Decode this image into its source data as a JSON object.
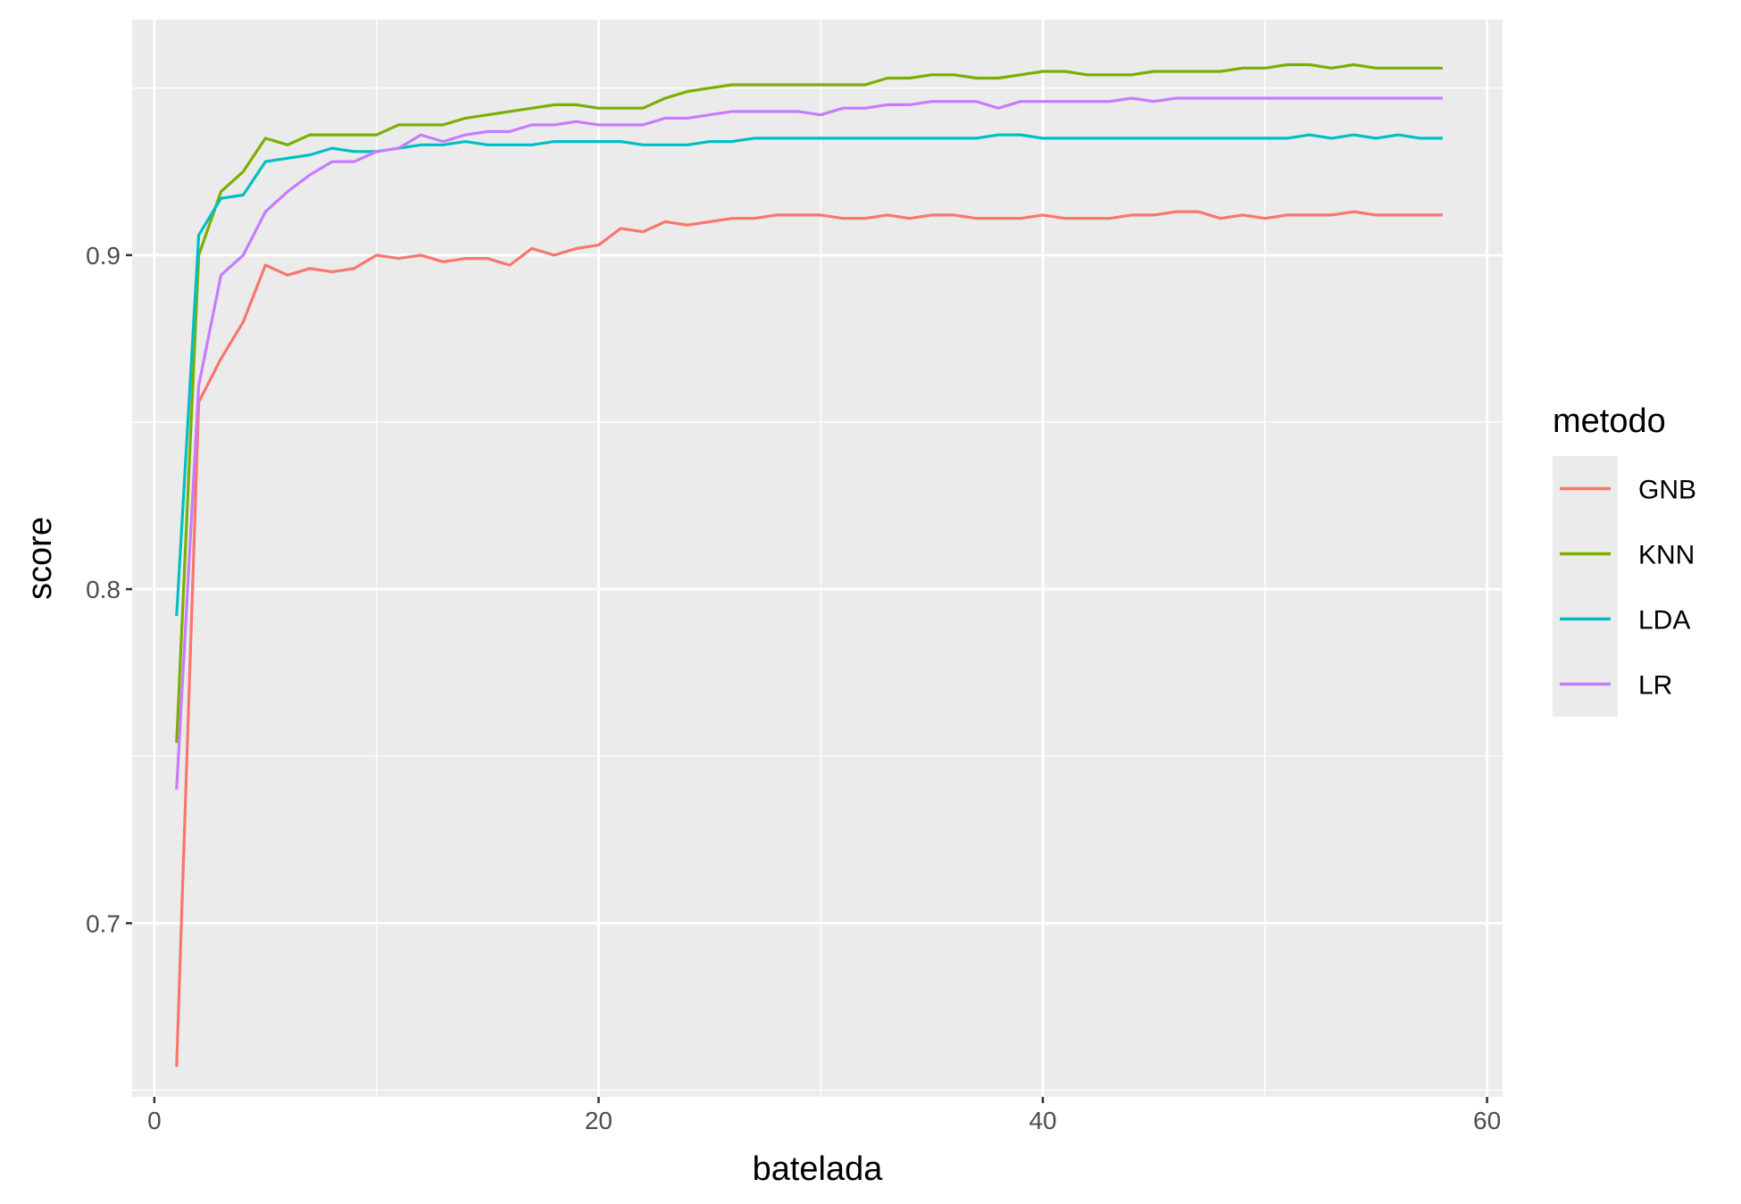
{
  "chart_data": {
    "type": "line",
    "xlabel": "batelada",
    "ylabel": "score",
    "xlim": [
      -1,
      60.7
    ],
    "ylim": [
      0.648,
      0.9705
    ],
    "x_ticks": [
      0,
      20,
      40,
      60
    ],
    "x_tick_labels": [
      "0",
      "20",
      "40",
      "60"
    ],
    "y_ticks": [
      0.7,
      0.8,
      0.9
    ],
    "y_tick_labels": [
      "0.7",
      "0.8",
      "0.9"
    ],
    "grid": true,
    "legend": {
      "title": "metodo",
      "position": "right"
    },
    "x": [
      1,
      2,
      3,
      4,
      5,
      6,
      7,
      8,
      9,
      10,
      11,
      12,
      13,
      14,
      15,
      16,
      17,
      18,
      19,
      20,
      21,
      22,
      23,
      24,
      25,
      26,
      27,
      28,
      29,
      30,
      31,
      32,
      33,
      34,
      35,
      36,
      37,
      38,
      39,
      40,
      41,
      42,
      43,
      44,
      45,
      46,
      47,
      48,
      49,
      50,
      51,
      52,
      53,
      54,
      55,
      56,
      57,
      58
    ],
    "series": [
      {
        "name": "GNB",
        "color": "#F8766D",
        "values": [
          0.657,
          0.856,
          0.869,
          0.88,
          0.897,
          0.894,
          0.896,
          0.895,
          0.896,
          0.9,
          0.899,
          0.9,
          0.898,
          0.899,
          0.899,
          0.897,
          0.902,
          0.9,
          0.902,
          0.903,
          0.908,
          0.907,
          0.91,
          0.909,
          0.91,
          0.911,
          0.911,
          0.912,
          0.912,
          0.912,
          0.911,
          0.911,
          0.912,
          0.911,
          0.912,
          0.912,
          0.911,
          0.911,
          0.911,
          0.912,
          0.911,
          0.911,
          0.911,
          0.912,
          0.912,
          0.913,
          0.913,
          0.911,
          0.912,
          0.911,
          0.912,
          0.912,
          0.912,
          0.913,
          0.912,
          0.912,
          0.912,
          0.912
        ]
      },
      {
        "name": "KNN",
        "color": "#7CAE00",
        "values": [
          0.754,
          0.9,
          0.919,
          0.925,
          0.935,
          0.933,
          0.936,
          0.936,
          0.936,
          0.936,
          0.939,
          0.939,
          0.939,
          0.941,
          0.942,
          0.943,
          0.944,
          0.945,
          0.945,
          0.944,
          0.944,
          0.944,
          0.947,
          0.949,
          0.95,
          0.951,
          0.951,
          0.951,
          0.951,
          0.951,
          0.951,
          0.951,
          0.953,
          0.953,
          0.954,
          0.954,
          0.953,
          0.953,
          0.954,
          0.955,
          0.955,
          0.954,
          0.954,
          0.954,
          0.955,
          0.955,
          0.955,
          0.955,
          0.956,
          0.956,
          0.957,
          0.957,
          0.956,
          0.957,
          0.956,
          0.956,
          0.956,
          0.956
        ]
      },
      {
        "name": "LDA",
        "color": "#00BFC4",
        "values": [
          0.792,
          0.906,
          0.917,
          0.918,
          0.928,
          0.929,
          0.93,
          0.932,
          0.931,
          0.931,
          0.932,
          0.933,
          0.933,
          0.934,
          0.933,
          0.933,
          0.933,
          0.934,
          0.934,
          0.934,
          0.934,
          0.933,
          0.933,
          0.933,
          0.934,
          0.934,
          0.935,
          0.935,
          0.935,
          0.935,
          0.935,
          0.935,
          0.935,
          0.935,
          0.935,
          0.935,
          0.935,
          0.936,
          0.936,
          0.935,
          0.935,
          0.935,
          0.935,
          0.935,
          0.935,
          0.935,
          0.935,
          0.935,
          0.935,
          0.935,
          0.935,
          0.936,
          0.935,
          0.936,
          0.935,
          0.936,
          0.935,
          0.935
        ]
      },
      {
        "name": "LR",
        "color": "#C77CFF",
        "values": [
          0.74,
          0.861,
          0.894,
          0.9,
          0.913,
          0.919,
          0.924,
          0.928,
          0.928,
          0.931,
          0.932,
          0.936,
          0.934,
          0.936,
          0.937,
          0.937,
          0.939,
          0.939,
          0.94,
          0.939,
          0.939,
          0.939,
          0.941,
          0.941,
          0.942,
          0.943,
          0.943,
          0.943,
          0.943,
          0.942,
          0.944,
          0.944,
          0.945,
          0.945,
          0.946,
          0.946,
          0.946,
          0.944,
          0.946,
          0.946,
          0.946,
          0.946,
          0.946,
          0.947,
          0.946,
          0.947,
          0.947,
          0.947,
          0.947,
          0.947,
          0.947,
          0.947,
          0.947,
          0.947,
          0.947,
          0.947,
          0.947,
          0.947
        ]
      }
    ]
  }
}
